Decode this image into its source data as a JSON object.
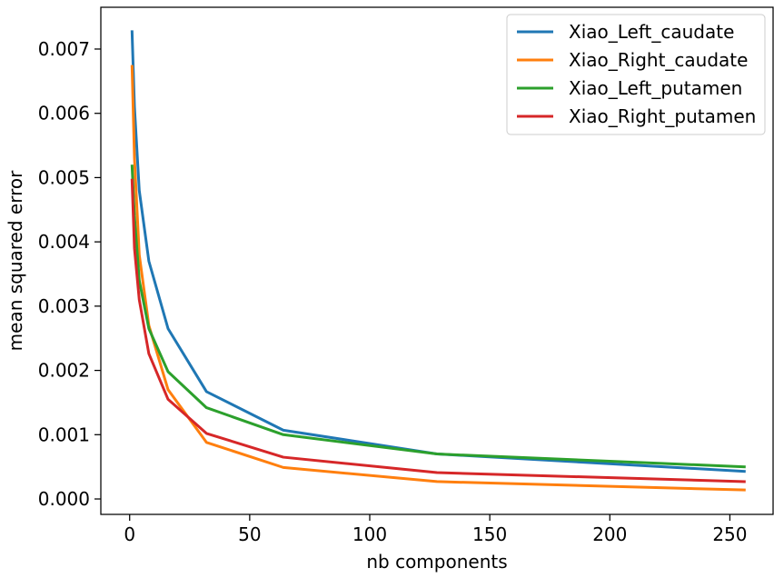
{
  "chart_data": {
    "type": "line",
    "title": "",
    "xlabel": "nb components",
    "ylabel": "mean squared error",
    "xlim": [
      -12,
      268
    ],
    "ylim": [
      -0.00024,
      0.00765
    ],
    "xticks": [
      0,
      50,
      100,
      150,
      200,
      250
    ],
    "xtick_labels": [
      "0",
      "50",
      "100",
      "150",
      "200",
      "250"
    ],
    "yticks": [
      0.0,
      0.001,
      0.002,
      0.003,
      0.004,
      0.005,
      0.006,
      0.007
    ],
    "ytick_labels": [
      "0.000",
      "0.001",
      "0.002",
      "0.003",
      "0.004",
      "0.005",
      "0.006",
      "0.007"
    ],
    "grid": false,
    "legend_position": "top-right",
    "x": [
      1,
      2,
      4,
      8,
      16,
      32,
      64,
      128,
      256
    ],
    "series": [
      {
        "name": "Xiao_Left_caudate",
        "color": "#1f77b4",
        "values": [
          0.00727,
          0.0061,
          0.0048,
          0.0037,
          0.00265,
          0.00167,
          0.00107,
          0.0007,
          0.00043
        ]
      },
      {
        "name": "Xiao_Right_caudate",
        "color": "#ff7f0e",
        "values": [
          0.00673,
          0.0053,
          0.0038,
          0.0027,
          0.0017,
          0.00088,
          0.00049,
          0.00027,
          0.00014
        ]
      },
      {
        "name": "Xiao_Left_putamen",
        "color": "#2ca02c",
        "values": [
          0.00518,
          0.0044,
          0.0034,
          0.00265,
          0.00198,
          0.00142,
          0.001,
          0.0007,
          0.0005
        ]
      },
      {
        "name": "Xiao_Right_putamen",
        "color": "#d62728",
        "values": [
          0.00496,
          0.0039,
          0.0031,
          0.00226,
          0.00155,
          0.00102,
          0.00065,
          0.00041,
          0.00027
        ]
      }
    ]
  }
}
